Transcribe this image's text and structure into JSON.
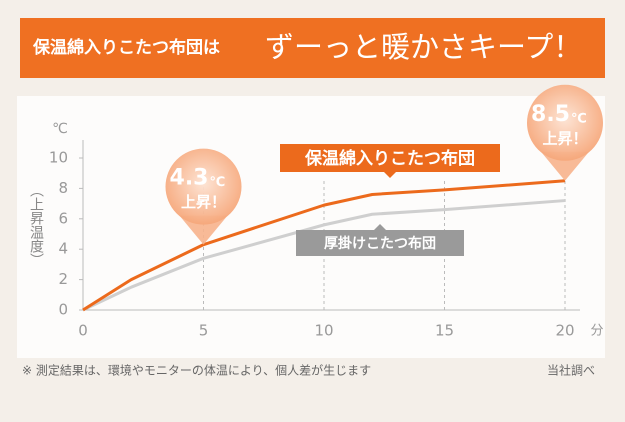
{
  "chart_data": {
    "type": "line",
    "title": "保温綿入りこたつ布団は",
    "subtitle": "ずーっと暖かさキープ！",
    "y_unit": "℃",
    "y_label": "（上昇温度）",
    "x_unit": "分",
    "x": [
      0,
      2,
      5,
      10,
      12,
      15,
      20
    ],
    "series": [
      {
        "name": "保温綿入りこたつ布団",
        "color": "#ec6a1c",
        "values": [
          0,
          2.0,
          4.3,
          6.9,
          7.6,
          7.9,
          8.5
        ]
      },
      {
        "name": "厚掛けこたつ布団",
        "color": "#cfcfcf",
        "values": [
          0,
          1.5,
          3.4,
          5.6,
          6.3,
          6.6,
          7.2
        ]
      }
    ],
    "xlim": [
      0,
      20
    ],
    "xticks": [
      0,
      5,
      10,
      15,
      20
    ],
    "ylim": [
      0,
      10
    ],
    "yticks": [
      0,
      2,
      4,
      6,
      8,
      10
    ],
    "grid": true,
    "annotations": [
      {
        "x": 5,
        "value": 4.3,
        "unit": "℃",
        "text": "上昇！"
      },
      {
        "x": 20,
        "value": 8.5,
        "unit": "℃",
        "text": "上昇！"
      }
    ],
    "note": "※ 測定結果は、環境やモニターの体温により、個人差が生じます",
    "source": "当社調べ"
  }
}
